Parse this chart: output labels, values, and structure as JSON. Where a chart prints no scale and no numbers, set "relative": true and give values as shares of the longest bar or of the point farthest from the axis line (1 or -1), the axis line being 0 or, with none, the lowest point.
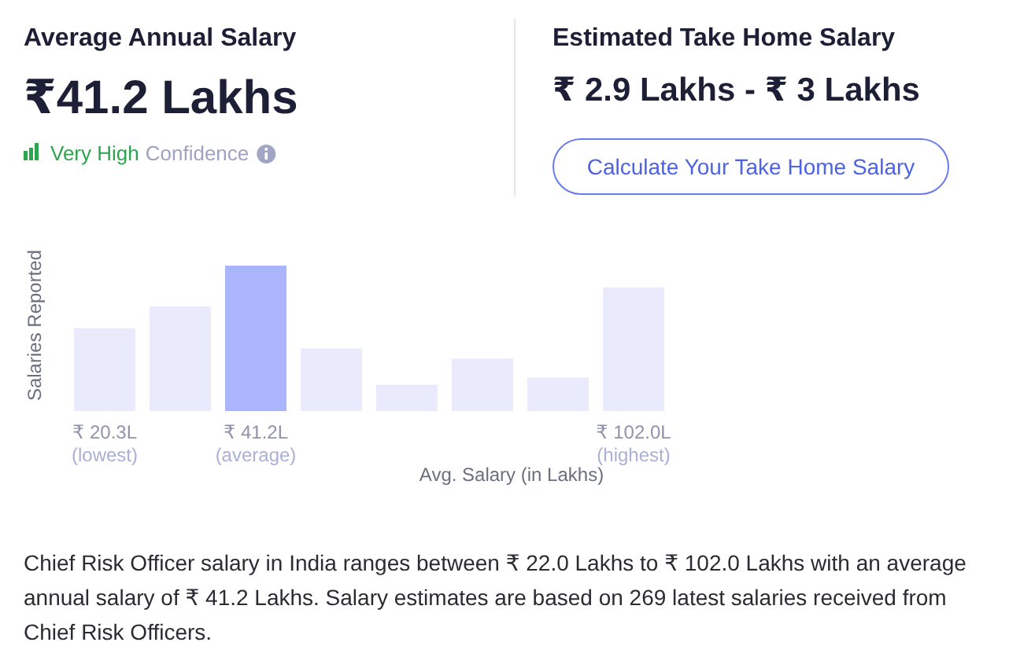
{
  "chart_data": {
    "type": "bar",
    "relative": true,
    "categories": [
      "₹ 20.3L\n(lowest)",
      null,
      "₹ 41.2L\n(average)",
      null,
      null,
      null,
      null,
      "₹ 102.0L\n(highest)"
    ],
    "values": [
      0.57,
      0.72,
      1,
      0.43,
      0.18,
      0.36,
      0.23,
      0.85
    ],
    "colors": [
      "#e9ebfd",
      "#e9ebfd",
      "#abb5fc",
      "#e9ebfd",
      "#e9ebfd",
      "#e9ebfd",
      "#e9ebfd",
      "#e9ebfd"
    ],
    "xlabel": "Avg. Salary (in Lakhs)",
    "ylabel": "Salaries Reported",
    "annotations": [
      "Average Annual Salary",
      "₹41.2 Lakhs",
      "Very High",
      "Confidence",
      "Estimated Take Home Salary",
      "₹ 2.9 Lakhs - ₹ 3 Lakhs",
      "Calculate Your Take Home Salary",
      "Chief Risk Officer salary in India ranges between ₹ 22.0 Lakhs to ₹ 102.0 Lakhs with an average annual salary of ₹ 41.2 Lakhs. Salary estimates are based on 269 latest salaries received from Chief Risk Officers."
    ]
  }
}
